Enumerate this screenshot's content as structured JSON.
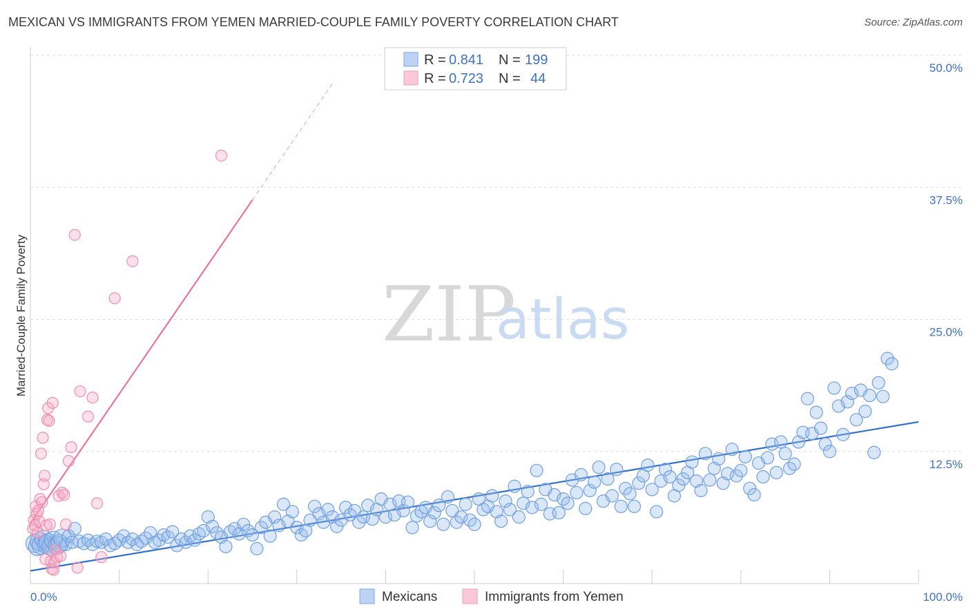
{
  "title": "MEXICAN VS IMMIGRANTS FROM YEMEN MARRIED-COUPLE FAMILY POVERTY CORRELATION CHART",
  "source": "Source: ZipAtlas.com",
  "watermark": {
    "part1": "ZIP",
    "part2": "atlas"
  },
  "legend_top": {
    "rows": [
      {
        "r_label": "R = ",
        "r_value": "0.841",
        "n_label": "N = ",
        "n_value": "199",
        "color": "#7aa6e6"
      },
      {
        "r_label": "R = ",
        "r_value": "0.723",
        "n_label": "N = ",
        "n_value": "44",
        "color": "#f09ab7"
      }
    ]
  },
  "colors": {
    "blue": "#6f9fe0",
    "blue_line": "#2f6fcf",
    "pink": "#f08db0",
    "pink_line": "#e8739e",
    "axis_text": "#3d72c4",
    "grid": "#dddddd"
  },
  "chart_data": {
    "type": "scatter",
    "ylabel": "Married-Couple Family Poverty",
    "xlim": [
      0,
      100
    ],
    "ylim": [
      0,
      50
    ],
    "x_tick_labels": [
      "0.0%",
      "100.0%"
    ],
    "y_ticks": [
      12.5,
      25.0,
      37.5,
      50.0
    ],
    "y_tick_labels": [
      "12.5%",
      "25.0%",
      "37.5%",
      "50.0%"
    ],
    "legend_position": "bottom-center",
    "series": [
      {
        "name": "Mexicans",
        "color": "#6f9fe0",
        "trend": {
          "x0": 0,
          "y0": 1.2,
          "x1": 100,
          "y1": 15.3
        },
        "points": [
          [
            0.5,
            3.8
          ],
          [
            0.8,
            3.5
          ],
          [
            1.0,
            4.0
          ],
          [
            1.2,
            3.6
          ],
          [
            1.5,
            4.2
          ],
          [
            1.8,
            3.7
          ],
          [
            2.0,
            3.9
          ],
          [
            2.3,
            3.5
          ],
          [
            2.6,
            4.1
          ],
          [
            3.0,
            3.6
          ],
          [
            3.3,
            3.8
          ],
          [
            3.6,
            4.3
          ],
          [
            4.0,
            3.7
          ],
          [
            4.3,
            4.5
          ],
          [
            4.7,
            3.9
          ],
          [
            5.0,
            5.2
          ],
          [
            5.5,
            4.0
          ],
          [
            6.0,
            3.8
          ],
          [
            6.5,
            4.1
          ],
          [
            7.0,
            3.7
          ],
          [
            7.5,
            4.0
          ],
          [
            8.0,
            3.9
          ],
          [
            8.5,
            4.2
          ],
          [
            9.0,
            3.6
          ],
          [
            9.5,
            3.8
          ],
          [
            10.0,
            4.1
          ],
          [
            10.5,
            4.5
          ],
          [
            11.0,
            3.9
          ],
          [
            11.5,
            4.2
          ],
          [
            12.0,
            3.7
          ],
          [
            12.5,
            4.0
          ],
          [
            13.0,
            4.3
          ],
          [
            13.5,
            4.8
          ],
          [
            14.0,
            3.9
          ],
          [
            14.5,
            4.1
          ],
          [
            15.0,
            4.6
          ],
          [
            15.5,
            4.4
          ],
          [
            16.0,
            4.9
          ],
          [
            16.5,
            3.6
          ],
          [
            17.0,
            4.2
          ],
          [
            17.5,
            3.9
          ],
          [
            18.0,
            4.5
          ],
          [
            18.5,
            4.1
          ],
          [
            19.0,
            4.7
          ],
          [
            19.5,
            5.0
          ],
          [
            20.0,
            6.3
          ],
          [
            20.5,
            5.4
          ],
          [
            21.0,
            4.8
          ],
          [
            21.5,
            4.4
          ],
          [
            22.0,
            3.5
          ],
          [
            22.5,
            4.9
          ],
          [
            23.0,
            5.2
          ],
          [
            23.5,
            4.7
          ],
          [
            24.0,
            5.6
          ],
          [
            24.5,
            5.0
          ],
          [
            25.0,
            4.6
          ],
          [
            25.5,
            3.3
          ],
          [
            26.0,
            5.3
          ],
          [
            26.5,
            5.8
          ],
          [
            27.0,
            4.5
          ],
          [
            27.5,
            6.3
          ],
          [
            28.0,
            5.5
          ],
          [
            28.5,
            7.5
          ],
          [
            29.0,
            5.9
          ],
          [
            29.5,
            6.8
          ],
          [
            30.0,
            5.3
          ],
          [
            30.5,
            4.6
          ],
          [
            31.0,
            5.0
          ],
          [
            31.5,
            6.0
          ],
          [
            32.0,
            7.3
          ],
          [
            32.5,
            6.6
          ],
          [
            33.0,
            5.8
          ],
          [
            33.5,
            7.0
          ],
          [
            34.0,
            6.3
          ],
          [
            34.5,
            5.4
          ],
          [
            35.0,
            6.0
          ],
          [
            35.5,
            7.2
          ],
          [
            36.0,
            6.5
          ],
          [
            36.5,
            6.9
          ],
          [
            37.0,
            5.8
          ],
          [
            37.5,
            6.3
          ],
          [
            38.0,
            7.4
          ],
          [
            38.5,
            6.1
          ],
          [
            39.0,
            7.0
          ],
          [
            39.5,
            8.0
          ],
          [
            40.0,
            6.3
          ],
          [
            40.5,
            7.5
          ],
          [
            41.0,
            6.5
          ],
          [
            41.5,
            7.8
          ],
          [
            42.0,
            6.9
          ],
          [
            42.5,
            7.7
          ],
          [
            43.0,
            5.3
          ],
          [
            43.5,
            6.4
          ],
          [
            44.0,
            6.8
          ],
          [
            44.5,
            7.2
          ],
          [
            45.0,
            5.9
          ],
          [
            45.5,
            6.7
          ],
          [
            46.0,
            7.4
          ],
          [
            46.5,
            5.6
          ],
          [
            47.0,
            8.2
          ],
          [
            47.5,
            6.9
          ],
          [
            48.0,
            5.8
          ],
          [
            48.5,
            6.3
          ],
          [
            49.0,
            7.5
          ],
          [
            49.5,
            6.0
          ],
          [
            50.0,
            5.6
          ],
          [
            50.5,
            8.0
          ],
          [
            51.0,
            7.0
          ],
          [
            51.5,
            7.3
          ],
          [
            52.0,
            8.3
          ],
          [
            52.5,
            6.8
          ],
          [
            53.0,
            5.9
          ],
          [
            53.5,
            7.8
          ],
          [
            54.0,
            7.0
          ],
          [
            54.5,
            9.2
          ],
          [
            55.0,
            6.3
          ],
          [
            55.5,
            7.6
          ],
          [
            56.0,
            8.7
          ],
          [
            56.5,
            7.2
          ],
          [
            57.0,
            10.7
          ],
          [
            57.5,
            7.5
          ],
          [
            58.0,
            8.9
          ],
          [
            58.5,
            6.6
          ],
          [
            59.0,
            8.4
          ],
          [
            59.5,
            6.7
          ],
          [
            60.0,
            8.0
          ],
          [
            60.5,
            7.6
          ],
          [
            61.0,
            9.8
          ],
          [
            61.5,
            8.6
          ],
          [
            62.0,
            10.3
          ],
          [
            62.5,
            7.1
          ],
          [
            63.0,
            8.8
          ],
          [
            63.5,
            9.6
          ],
          [
            64.0,
            11.0
          ],
          [
            64.5,
            7.8
          ],
          [
            65.0,
            9.9
          ],
          [
            65.5,
            8.3
          ],
          [
            66.0,
            10.8
          ],
          [
            66.5,
            7.3
          ],
          [
            67.0,
            9.0
          ],
          [
            67.5,
            8.5
          ],
          [
            68.0,
            7.3
          ],
          [
            68.5,
            9.5
          ],
          [
            69.0,
            10.2
          ],
          [
            69.5,
            11.2
          ],
          [
            70.0,
            8.9
          ],
          [
            70.5,
            6.8
          ],
          [
            71.0,
            9.7
          ],
          [
            71.5,
            10.8
          ],
          [
            72.0,
            10.1
          ],
          [
            72.5,
            8.3
          ],
          [
            73.0,
            9.3
          ],
          [
            73.5,
            9.9
          ],
          [
            74.0,
            10.5
          ],
          [
            74.5,
            11.5
          ],
          [
            75.0,
            9.7
          ],
          [
            75.5,
            8.8
          ],
          [
            76.0,
            12.3
          ],
          [
            76.5,
            9.8
          ],
          [
            77.0,
            10.9
          ],
          [
            77.5,
            11.8
          ],
          [
            78.0,
            9.5
          ],
          [
            78.5,
            10.4
          ],
          [
            79.0,
            12.7
          ],
          [
            79.5,
            10.2
          ],
          [
            80.0,
            10.7
          ],
          [
            80.5,
            12.0
          ],
          [
            81.0,
            9.0
          ],
          [
            81.5,
            8.4
          ],
          [
            82.0,
            11.4
          ],
          [
            82.5,
            10.1
          ],
          [
            83.0,
            11.9
          ],
          [
            83.5,
            13.2
          ],
          [
            84.0,
            10.5
          ],
          [
            84.5,
            13.4
          ],
          [
            85.0,
            12.3
          ],
          [
            85.5,
            10.9
          ],
          [
            86.0,
            11.3
          ],
          [
            86.5,
            13.4
          ],
          [
            87.0,
            14.3
          ],
          [
            87.5,
            17.5
          ],
          [
            88.0,
            14.2
          ],
          [
            88.5,
            16.2
          ],
          [
            89.0,
            14.7
          ],
          [
            89.5,
            13.2
          ],
          [
            90.0,
            12.5
          ],
          [
            90.5,
            18.5
          ],
          [
            91.0,
            16.8
          ],
          [
            91.5,
            14.1
          ],
          [
            92.0,
            17.2
          ],
          [
            92.5,
            18.0
          ],
          [
            93.0,
            15.5
          ],
          [
            93.5,
            18.3
          ],
          [
            94.0,
            16.3
          ],
          [
            94.5,
            17.8
          ],
          [
            95.0,
            12.4
          ],
          [
            95.5,
            19.0
          ],
          [
            96.0,
            17.7
          ],
          [
            96.5,
            21.3
          ],
          [
            97.0,
            20.8
          ]
        ]
      },
      {
        "name": "Immigrants from Yemen",
        "color": "#f08db0",
        "trend": {
          "x0": 0,
          "y0": 5.7,
          "x1": 25,
          "y1": 36.3,
          "dash_x1": 34,
          "dash_y1": 47.3
        },
        "points": [
          [
            0.3,
            5.2
          ],
          [
            0.4,
            6.0
          ],
          [
            0.5,
            5.5
          ],
          [
            0.6,
            7.3
          ],
          [
            0.7,
            6.6
          ],
          [
            0.8,
            4.8
          ],
          [
            0.9,
            6.9
          ],
          [
            1.0,
            5.9
          ],
          [
            1.1,
            8.0
          ],
          [
            1.2,
            12.3
          ],
          [
            1.3,
            7.7
          ],
          [
            1.4,
            13.8
          ],
          [
            1.5,
            9.4
          ],
          [
            1.6,
            10.2
          ],
          [
            1.7,
            2.3
          ],
          [
            1.8,
            5.5
          ],
          [
            1.9,
            15.5
          ],
          [
            2.0,
            16.6
          ],
          [
            2.1,
            15.4
          ],
          [
            2.2,
            5.6
          ],
          [
            2.3,
            2.1
          ],
          [
            2.4,
            1.4
          ],
          [
            2.5,
            17.1
          ],
          [
            2.6,
            1.3
          ],
          [
            2.7,
            2.0
          ],
          [
            2.8,
            3.2
          ],
          [
            3.0,
            2.5
          ],
          [
            3.2,
            8.3
          ],
          [
            3.4,
            2.6
          ],
          [
            3.6,
            8.6
          ],
          [
            3.8,
            8.4
          ],
          [
            4.0,
            5.6
          ],
          [
            4.3,
            11.6
          ],
          [
            4.6,
            12.9
          ],
          [
            5.0,
            33.0
          ],
          [
            5.3,
            1.5
          ],
          [
            5.6,
            18.2
          ],
          [
            6.5,
            15.8
          ],
          [
            7.0,
            17.6
          ],
          [
            7.5,
            7.6
          ],
          [
            8.0,
            2.5
          ],
          [
            9.5,
            27.0
          ],
          [
            11.5,
            30.5
          ],
          [
            21.5,
            40.5
          ]
        ]
      }
    ]
  }
}
